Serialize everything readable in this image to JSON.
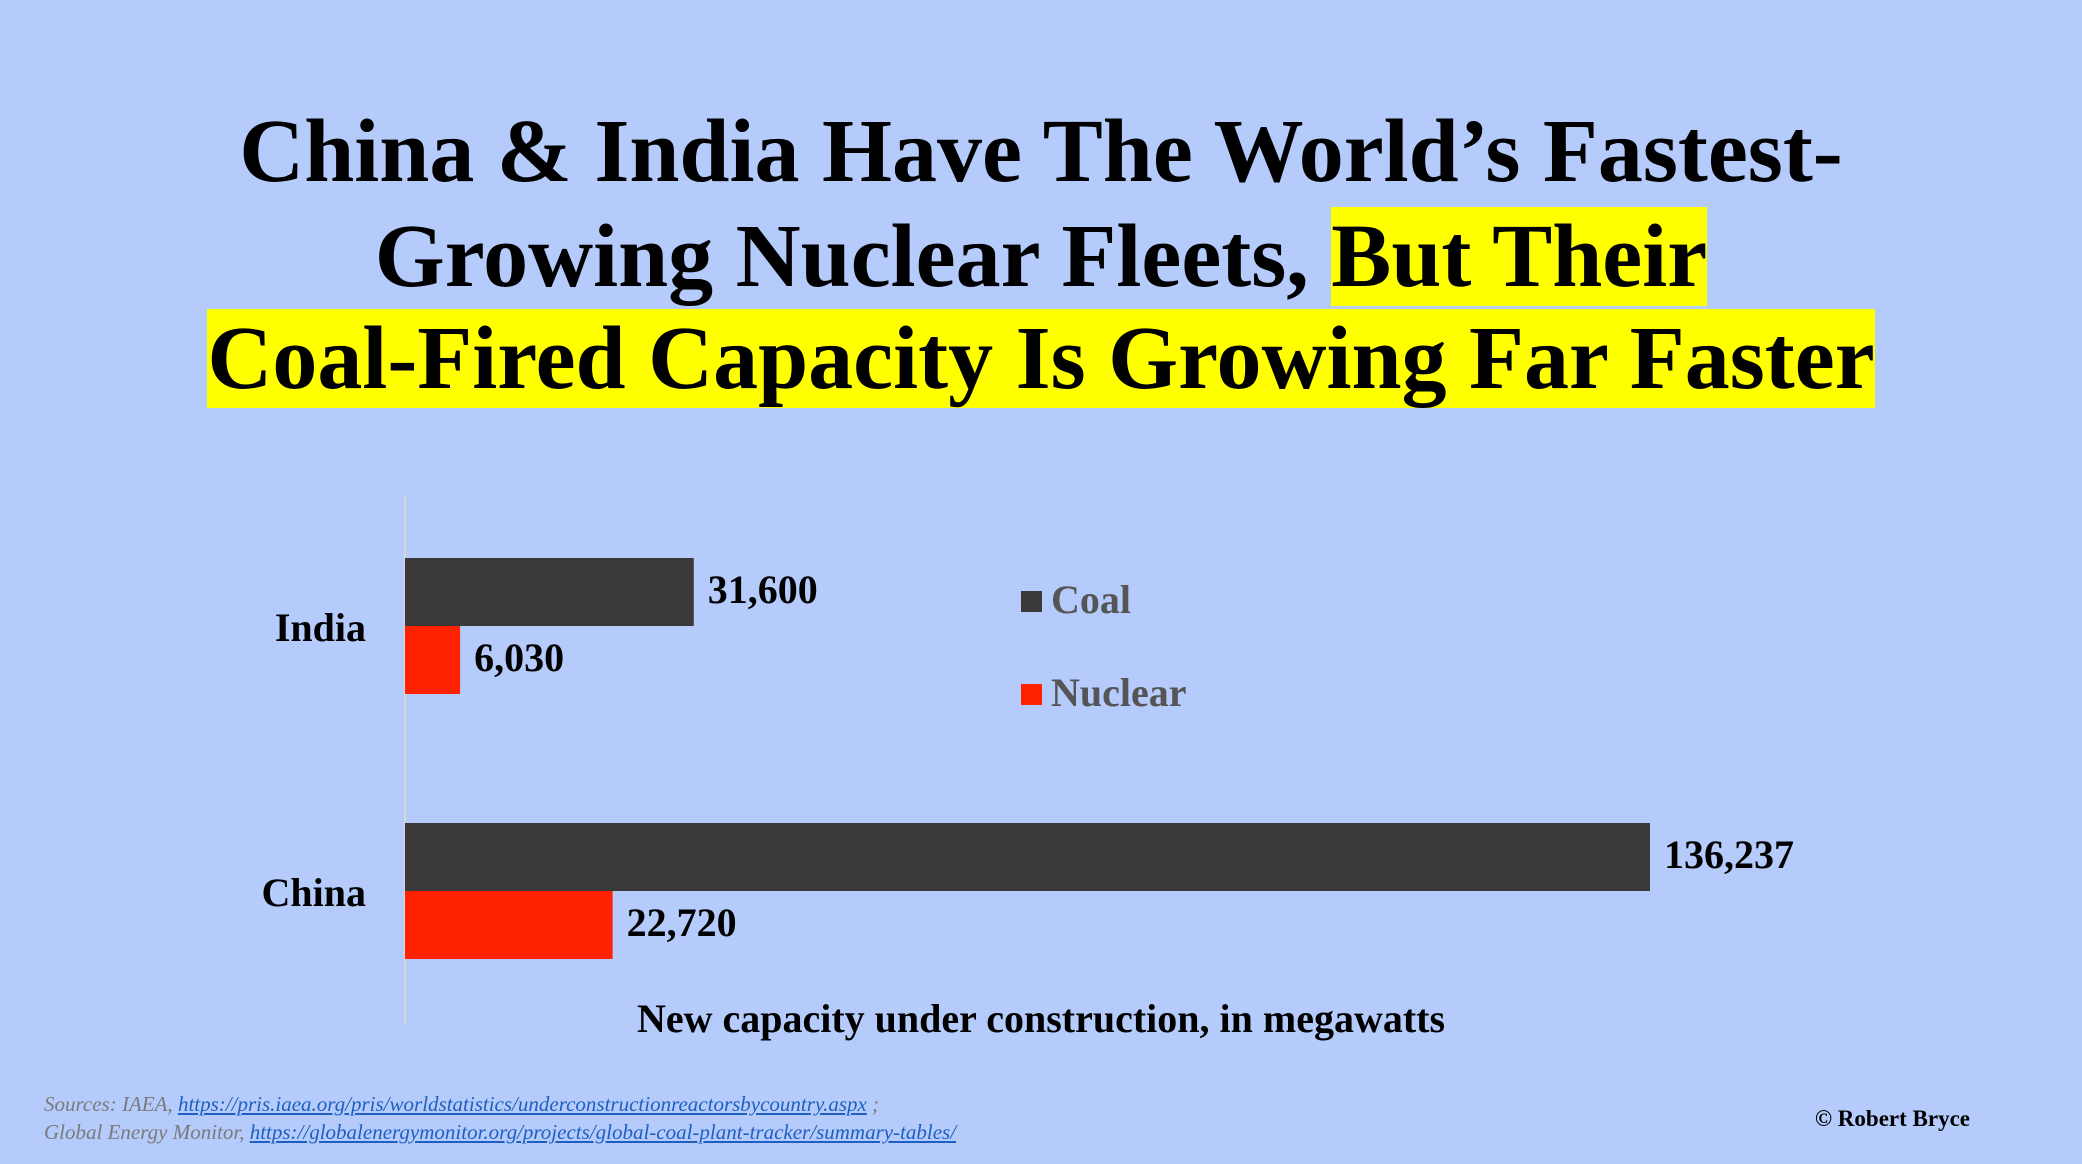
{
  "title": {
    "line1": "China & India Have The World’s Fastest-",
    "line2_plain": "Growing Nuclear Fleets, ",
    "line2_highlight": "But Their",
    "line3_highlight": "Coal-Fired Capacity Is Growing Far Faster"
  },
  "colors": {
    "background": "#b4cbfc",
    "highlight": "#ffff00",
    "coal": "#3a3839",
    "nuclear": "#ff2200",
    "legend_text": "#555555"
  },
  "chart_data": {
    "type": "bar",
    "orientation": "horizontal",
    "categories": [
      "India",
      "China"
    ],
    "series": [
      {
        "name": "Coal",
        "values": [
          31600,
          136237
        ],
        "labels": [
          "31,600",
          "136,237"
        ],
        "color": "#3a3839"
      },
      {
        "name": "Nuclear",
        "values": [
          6030,
          22720
        ],
        "labels": [
          "6,030",
          "22,720"
        ],
        "color": "#ff2200"
      }
    ],
    "xlabel": "New capacity under construction, in megawatts",
    "ylabel": "",
    "xlim": [
      0,
      136237
    ],
    "grid": false,
    "legend": "center"
  },
  "sources": {
    "line1_prefix": "Sources: IAEA, ",
    "line1_link": "https://pris.iaea.org/pris/worldstatistics/underconstructionreactorsbycountry.aspx",
    "line1_suffix": " ;",
    "line2_prefix": "Global Energy Monitor, ",
    "line2_link": "https://globalenergymonitor.org/projects/global-coal-plant-tracker/summary-tables/"
  },
  "copyright": "© Robert Bryce"
}
